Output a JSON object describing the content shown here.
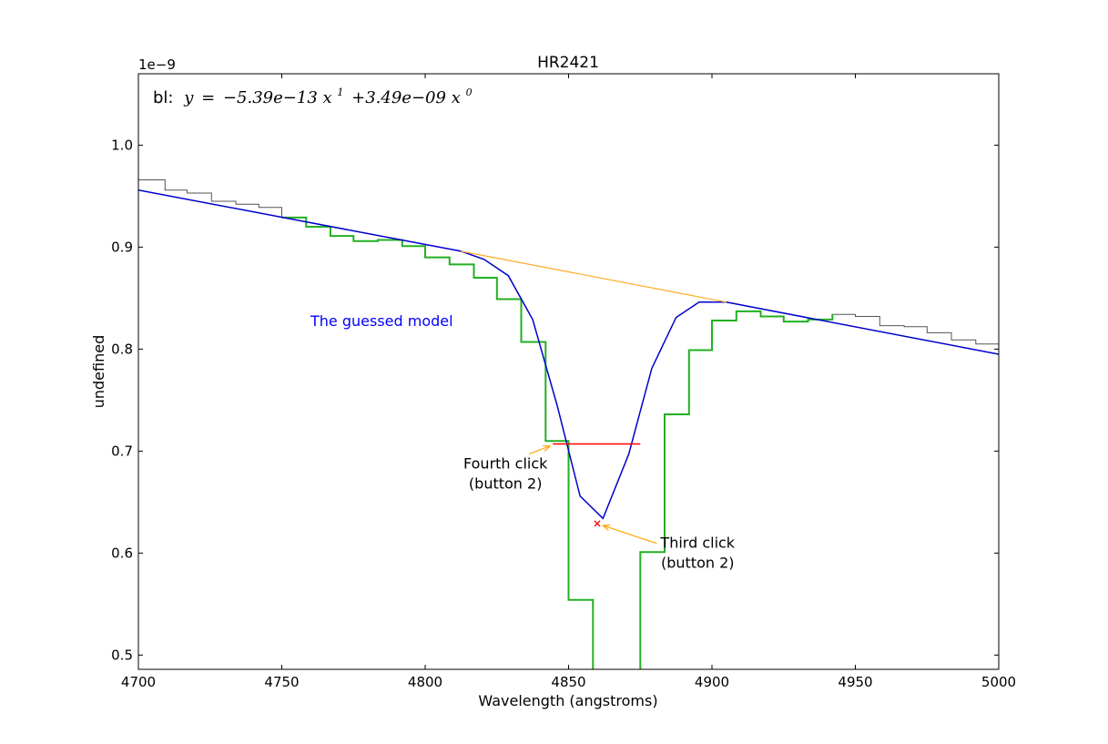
{
  "chart_data": {
    "type": "line",
    "title": "HR2421",
    "xlabel": "Wavelength (angstroms)",
    "ylabel": "undefined",
    "offset_label": "1e−9",
    "xlim": [
      4700,
      5000
    ],
    "ylim": [
      0.486,
      1.07
    ],
    "x_ticks": [
      4700,
      4750,
      4800,
      4850,
      4900,
      4950,
      5000
    ],
    "x_tick_labels": [
      "4700",
      "4750",
      "4800",
      "4850",
      "4900",
      "4950",
      "5000"
    ],
    "y_ticks": [
      0.5,
      0.6,
      0.7,
      0.8,
      0.9,
      1.0
    ],
    "y_tick_labels": [
      "0.5",
      "0.6",
      "0.7",
      "0.8",
      "0.9",
      "1.0"
    ],
    "grid": false,
    "colors": {
      "spectrum": "#555555",
      "selected": "#22b022",
      "model": "#0000cc",
      "baseline": "#ffaa22",
      "fwhm": "#ff0000",
      "marker": "#ff0000",
      "arrow": "#ffa500",
      "model_label": "#0000ff"
    },
    "baseline_label": {
      "prefix": "bl:",
      "lhs": "y",
      "coef1": "−5.39e−13",
      "var1": "x",
      "exp1": "1",
      "coef0": "+3.49e−09",
      "var0": "x",
      "exp0": "0"
    },
    "series": [
      {
        "role": "spectrum",
        "step": true,
        "edges": [
          4700,
          4709.3,
          4717,
          4725.5,
          4734,
          4742,
          4750,
          4758.5,
          4767,
          4775,
          4783.5,
          4792,
          4800,
          4808.5,
          4817,
          4825,
          4833.5,
          4842,
          4850,
          4858.5,
          4867,
          4875,
          4883.5,
          4892,
          4900,
          4908.5,
          4917,
          4925,
          4933.5,
          4942,
          4950,
          4958.5,
          4967,
          4975,
          4983.5,
          4992,
          5000
        ],
        "values": [
          0.966,
          0.956,
          0.953,
          0.945,
          0.942,
          0.939,
          0.929,
          0.92,
          0.911,
          0.906,
          0.907,
          0.901,
          0.89,
          0.883,
          0.87,
          0.849,
          0.807,
          0.71,
          0.554,
          0.44,
          0.44,
          0.601,
          0.736,
          0.799,
          0.828,
          0.837,
          0.832,
          0.827,
          0.829,
          0.834,
          0.832,
          0.823,
          0.822,
          0.816,
          0.809,
          0.805,
          0.8
        ]
      },
      {
        "role": "selected",
        "step": true,
        "edges": [
          4750,
          4758.5,
          4767,
          4775,
          4783.5,
          4792,
          4800,
          4808.5,
          4817,
          4825,
          4833.5,
          4842,
          4850,
          4858.5,
          4867,
          4875,
          4883.5,
          4892,
          4900,
          4908.5,
          4917,
          4925,
          4933.5,
          4942
        ],
        "values": [
          0.929,
          0.92,
          0.911,
          0.906,
          0.907,
          0.901,
          0.89,
          0.883,
          0.87,
          0.849,
          0.807,
          0.71,
          0.554,
          0.44,
          0.44,
          0.601,
          0.736,
          0.799,
          0.828,
          0.837,
          0.832,
          0.827,
          0.829,
          0.834
        ]
      },
      {
        "role": "model",
        "step": false,
        "x": [
          4700,
          4812.5,
          4820.5,
          4829,
          4837.5,
          4846,
          4854,
          4862,
          4871,
          4879,
          4887.5,
          4895.5,
          4905,
          5000
        ],
        "y": [
          0.956,
          0.896,
          0.888,
          0.872,
          0.829,
          0.745,
          0.656,
          0.634,
          0.697,
          0.781,
          0.831,
          0.846,
          0.846,
          0.795
        ]
      },
      {
        "role": "baseline",
        "step": false,
        "x": [
          4812.5,
          4905
        ],
        "y": [
          0.896,
          0.846
        ]
      },
      {
        "role": "fwhm",
        "step": false,
        "x": [
          4844.5,
          4875
        ],
        "y": [
          0.707,
          0.707
        ]
      }
    ],
    "marker": {
      "x": 4860,
      "y": 0.629
    },
    "annotations": [
      {
        "text": "The guessed model",
        "x": 4760,
        "y": 0.828
      },
      {
        "lines": [
          "Fourth click",
          "(button 2)"
        ],
        "x": 4828,
        "y": 0.683,
        "arrow_to": [
          4843.5,
          0.705
        ]
      },
      {
        "lines": [
          "Third click",
          "(button 2)"
        ],
        "x": 4895,
        "y": 0.605,
        "arrow_to": [
          4862,
          0.627
        ]
      }
    ]
  }
}
